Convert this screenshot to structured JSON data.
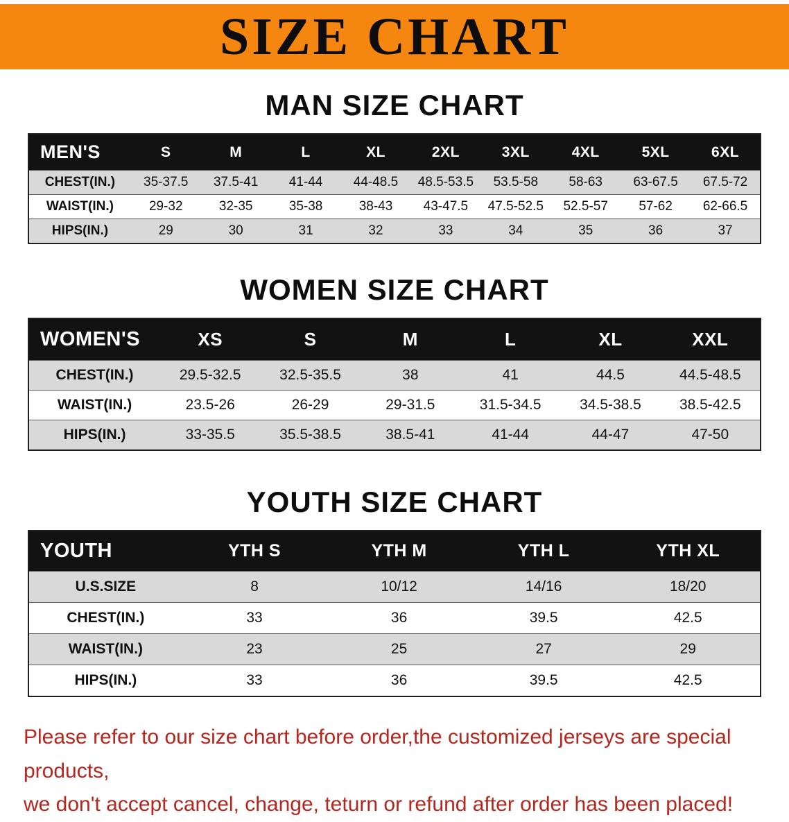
{
  "banner": {
    "title": "SIZE CHART",
    "bg_color": "#F5860F"
  },
  "sections": [
    {
      "heading": "MAN SIZE CHART",
      "table": {
        "header": [
          "MEN'S",
          "S",
          "M",
          "L",
          "XL",
          "2XL",
          "3XL",
          "4XL",
          "5XL",
          "6XL"
        ],
        "rows": [
          [
            "CHEST(IN.)",
            "35-37.5",
            "37.5-41",
            "41-44",
            "44-48.5",
            "48.5-53.5",
            "53.5-58",
            "58-63",
            "63-67.5",
            "67.5-72"
          ],
          [
            "WAIST(IN.)",
            "29-32",
            "32-35",
            "35-38",
            "38-43",
            "43-47.5",
            "47.5-52.5",
            "52.5-57",
            "57-62",
            "62-66.5"
          ],
          [
            "HIPS(IN.)",
            "29",
            "30",
            "31",
            "32",
            "33",
            "34",
            "35",
            "36",
            "37"
          ]
        ]
      }
    },
    {
      "heading": "WOMEN SIZE CHART",
      "table": {
        "header": [
          "WOMEN'S",
          "XS",
          "S",
          "M",
          "L",
          "XL",
          "XXL"
        ],
        "rows": [
          [
            "CHEST(IN.)",
            "29.5-32.5",
            "32.5-35.5",
            "38",
            "41",
            "44.5",
            "44.5-48.5"
          ],
          [
            "WAIST(IN.)",
            "23.5-26",
            "26-29",
            "29-31.5",
            "31.5-34.5",
            "34.5-38.5",
            "38.5-42.5"
          ],
          [
            "HIPS(IN.)",
            "33-35.5",
            "35.5-38.5",
            "38.5-41",
            "41-44",
            "44-47",
            "47-50"
          ]
        ]
      }
    },
    {
      "heading": "YOUTH SIZE CHART",
      "table": {
        "header": [
          "YOUTH",
          "YTH S",
          "YTH M",
          "YTH L",
          "YTH XL"
        ],
        "rows": [
          [
            "U.S.SIZE",
            "8",
            "10/12",
            "14/16",
            "18/20"
          ],
          [
            "CHEST(IN.)",
            "33",
            "36",
            "39.5",
            "42.5"
          ],
          [
            "WAIST(IN.)",
            "23",
            "25",
            "27",
            "29"
          ],
          [
            "HIPS(IN.)",
            "33",
            "36",
            "39.5",
            "42.5"
          ]
        ]
      }
    }
  ],
  "disclaimer": {
    "lines": [
      "Please refer to our size chart before order,the customized jerseys are special products,",
      "we don't accept cancel, change, teturn or refund after order has been placed!"
    ],
    "color": "#B3271E"
  }
}
